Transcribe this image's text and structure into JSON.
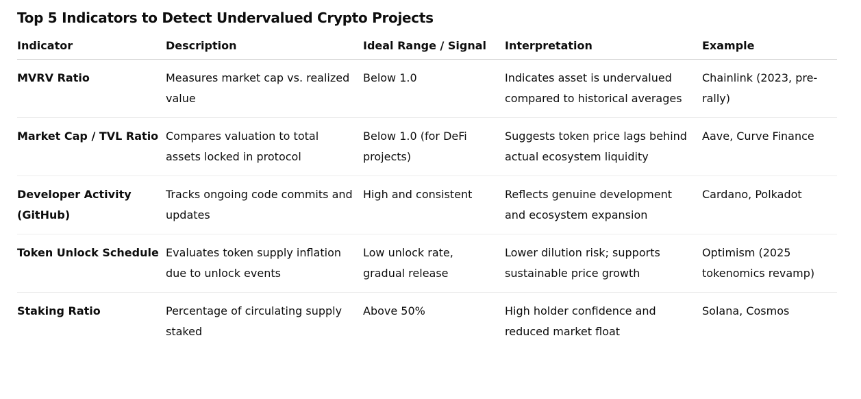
{
  "title": "Top 5 Indicators to Detect Undervalued Crypto Projects",
  "table": {
    "header": [
      "Indicator",
      "Description",
      "Ideal Range / Signal",
      "Interpretation",
      "Example"
    ],
    "rows": [
      [
        "MVRV Ratio",
        "Measures market cap vs. realized value",
        "Below 1.0",
        "Indicates asset is undervalued compared to historical averages",
        "Chainlink (2023, pre-rally)"
      ],
      [
        "Market Cap / TVL Ratio",
        "Compares valuation to total assets locked in protocol",
        "Below 1.0 (for DeFi projects)",
        "Suggests token price lags behind actual ecosystem liquidity",
        "Aave, Curve Finance"
      ],
      [
        "Developer Activity (GitHub)",
        "Tracks ongoing code commits and updates",
        "High and consistent",
        "Reflects genuine development and ecosystem expansion",
        "Cardano, Polkadot"
      ],
      [
        "Token Unlock Schedule",
        "Evaluates token supply inflation due to unlock events",
        "Low unlock rate, gradual release",
        "Lower dilution risk; supports sustainable price growth",
        "Optimism (2025 tokenomics revamp)"
      ],
      [
        "Staking Ratio",
        "Percentage of circulating supply staked",
        "Above 50%",
        "High holder confidence and reduced market float",
        "Solana, Cosmos"
      ]
    ]
  }
}
